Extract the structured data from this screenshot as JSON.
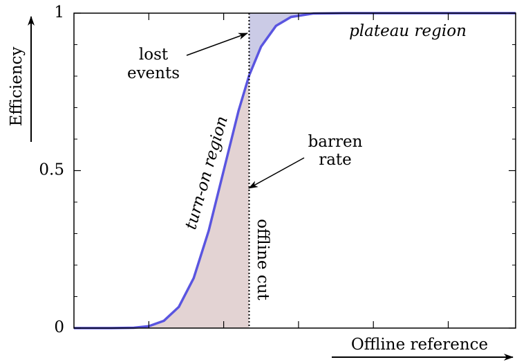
{
  "chart_data": {
    "type": "line",
    "y_label": "Efficiency",
    "x_label": "Offline reference",
    "x": [
      0,
      0.5,
      0.8,
      1.0,
      1.2,
      1.4,
      1.6,
      1.8,
      2.0,
      2.2,
      2.34,
      2.5,
      2.7,
      2.9,
      3.2,
      3.6,
      4.0,
      5.0,
      5.9
    ],
    "series": [
      {
        "color": "#5a55e0",
        "values": [
          0,
          0,
          0.001,
          0.006,
          0.023,
          0.067,
          0.159,
          0.309,
          0.5,
          0.691,
          0.802,
          0.894,
          0.96,
          0.988,
          0.999,
          1,
          1,
          1,
          1
        ]
      }
    ],
    "cut": 2.34,
    "below_fill_color": "#e3d3d3",
    "above_fill_color": "#cbcbe6",
    "xlim": [
      0,
      5.9
    ],
    "xticks": [
      1,
      2,
      3,
      4,
      5
    ],
    "ylim": [
      0,
      1
    ],
    "yticks": [
      0,
      0.5,
      1
    ],
    "yminorticks": [
      0.1,
      0.2,
      0.3,
      0.4,
      0.6,
      0.7,
      0.8,
      0.9
    ],
    "annotations": {
      "lost": [
        "lost",
        "events"
      ],
      "barren": [
        "barren",
        "rate"
      ],
      "plateau": "plateau region",
      "turn_on": "turn-on region",
      "cut": "offline cut"
    }
  }
}
